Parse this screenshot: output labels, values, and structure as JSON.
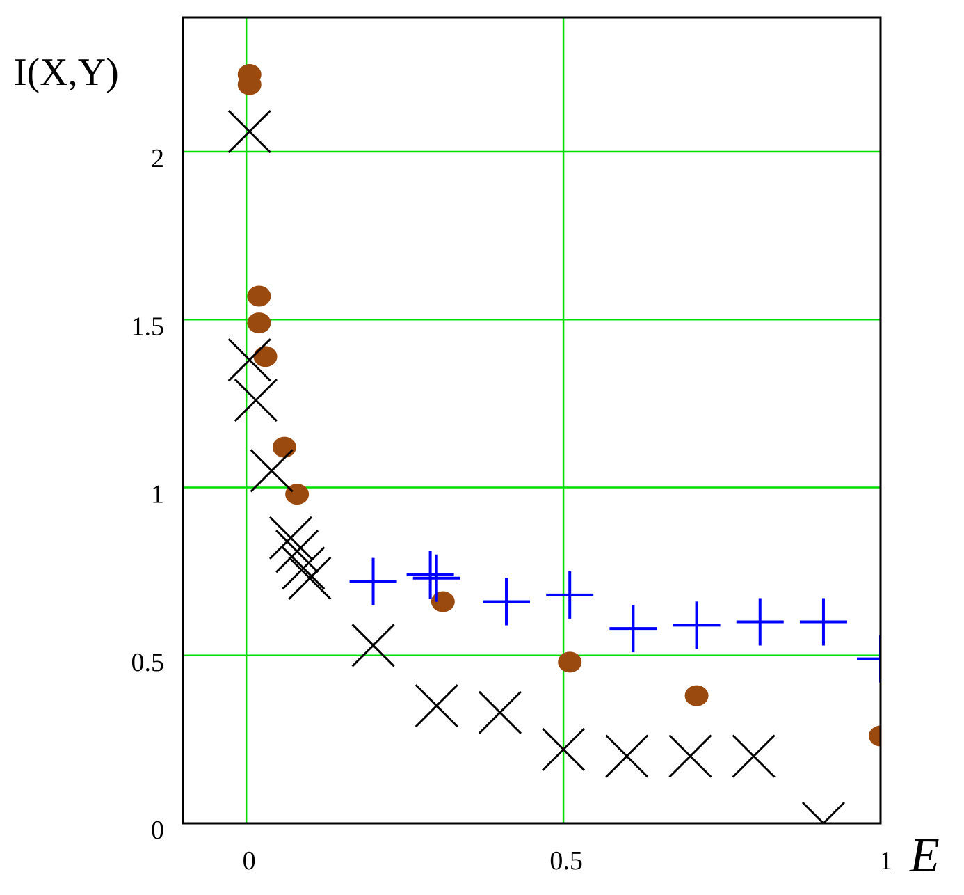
{
  "chart_data": {
    "type": "scatter",
    "ylabel": "I(X,Y)",
    "xlabel": "E",
    "xlim": [
      -0.1,
      1.0
    ],
    "ylim": [
      0,
      2.4
    ],
    "x_ticks": [
      {
        "value": 0,
        "label": "0"
      },
      {
        "value": 0.5,
        "label": "0.5"
      },
      {
        "value": 1,
        "label": "1"
      }
    ],
    "y_ticks": [
      {
        "value": 0,
        "label": "0"
      },
      {
        "value": 0.5,
        "label": "0.5"
      },
      {
        "value": 1,
        "label": "1"
      },
      {
        "value": 1.5,
        "label": "1.5"
      },
      {
        "value": 2,
        "label": "2"
      }
    ],
    "grid": true,
    "grid_color": "#00dd00",
    "series": [
      {
        "marker": "circle",
        "color": "#9b4a0f",
        "points": [
          [
            0.005,
            2.23
          ],
          [
            0.005,
            2.2
          ],
          [
            0.02,
            1.57
          ],
          [
            0.02,
            1.49
          ],
          [
            0.03,
            1.39
          ],
          [
            0.06,
            1.12
          ],
          [
            0.08,
            0.98
          ],
          [
            0.31,
            0.66
          ],
          [
            0.51,
            0.48
          ],
          [
            0.71,
            0.38
          ],
          [
            1.0,
            0.26
          ]
        ]
      },
      {
        "marker": "x",
        "color": "#000000",
        "points": [
          [
            0.005,
            2.06
          ],
          [
            0.005,
            1.38
          ],
          [
            0.015,
            1.26
          ],
          [
            0.04,
            1.05
          ],
          [
            0.07,
            0.85
          ],
          [
            0.08,
            0.81
          ],
          [
            0.09,
            0.76
          ],
          [
            0.1,
            0.73
          ],
          [
            0.2,
            0.53
          ],
          [
            0.3,
            0.35
          ],
          [
            0.4,
            0.33
          ],
          [
            0.5,
            0.22
          ],
          [
            0.6,
            0.2
          ],
          [
            0.7,
            0.2
          ],
          [
            0.8,
            0.2
          ],
          [
            0.91,
            0.0
          ]
        ]
      },
      {
        "marker": "plus",
        "color": "#0000ff",
        "points": [
          [
            0.2,
            0.72
          ],
          [
            0.29,
            0.74
          ],
          [
            0.3,
            0.73
          ],
          [
            0.41,
            0.66
          ],
          [
            0.51,
            0.68
          ],
          [
            0.61,
            0.58
          ],
          [
            0.71,
            0.59
          ],
          [
            0.81,
            0.6
          ],
          [
            0.91,
            0.6
          ],
          [
            1.0,
            0.49
          ]
        ]
      }
    ]
  }
}
